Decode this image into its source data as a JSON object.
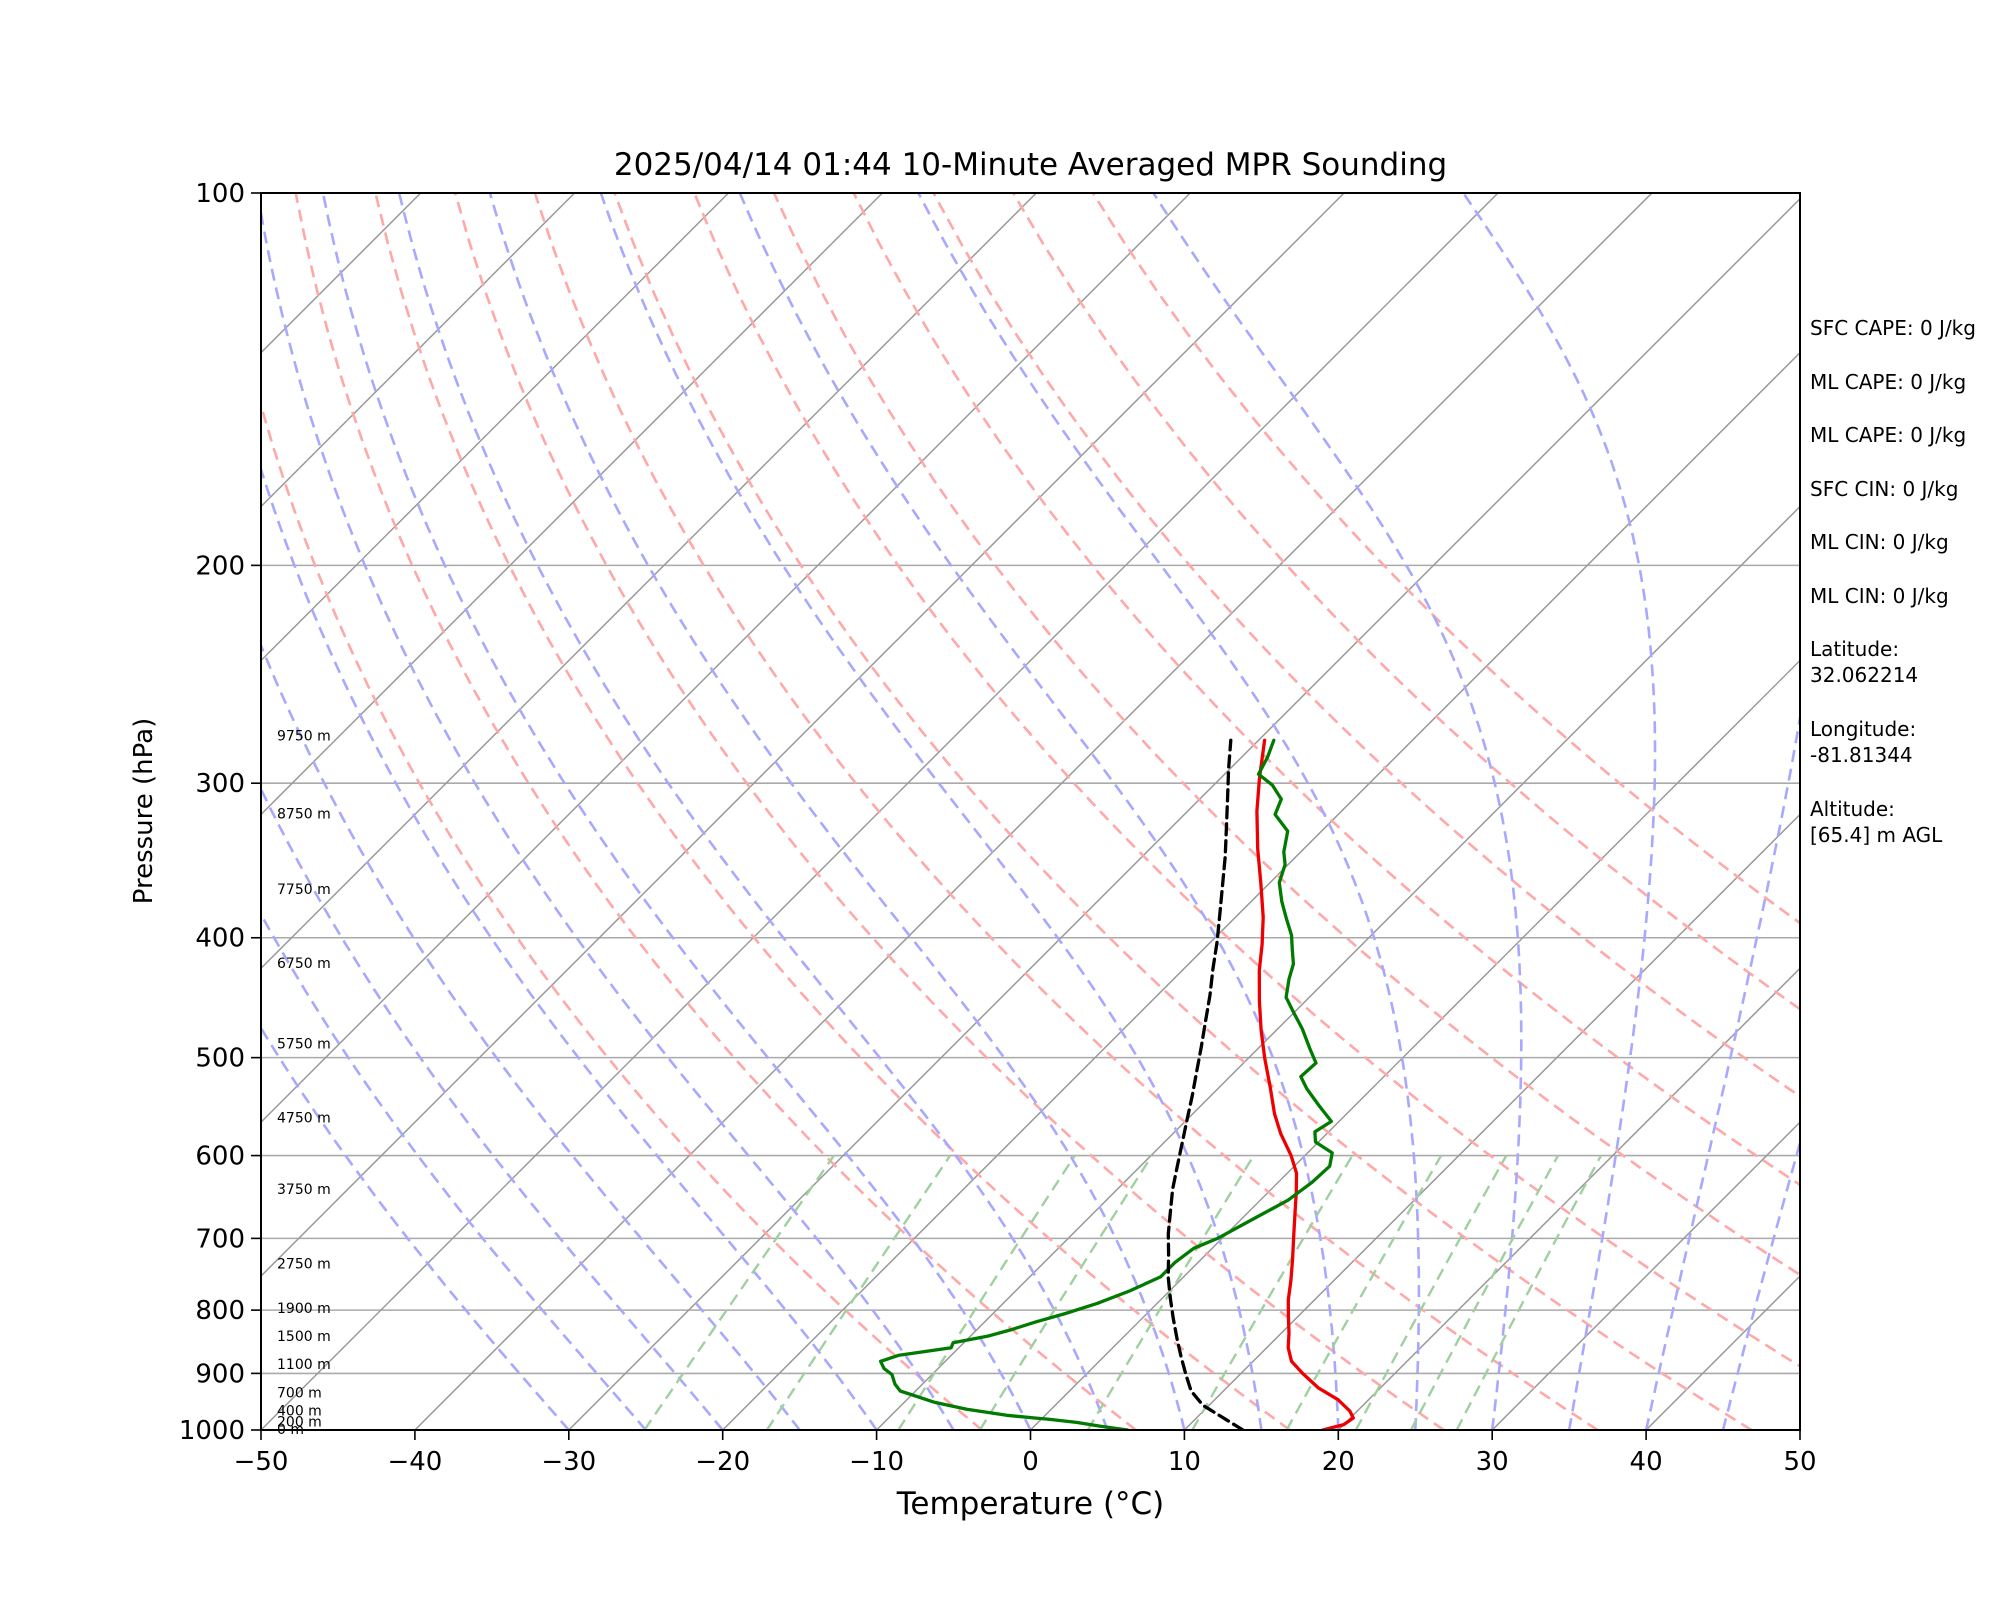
{
  "colors": {
    "temperature": "#ee0000",
    "dewpoint": "#007a00",
    "parcel": "#000000",
    "isobar": "#aaaaaa",
    "isotherm": "#999999",
    "dry_adiabat": "#ffa8a8",
    "moist_adiabat": "#a8a8ff",
    "mixing_ratio": "#a0d0a0"
  },
  "chart_data": {
    "type": "line",
    "title": "2025/04/14 01:44 10-Minute Averaged MPR Sounding",
    "xlabel": "Temperature (°C)",
    "ylabel": "Pressure (hPa)",
    "xlim": [
      -50,
      50
    ],
    "ylim": [
      1000,
      100
    ],
    "y_scale": "log",
    "x_ticks": [
      "−50",
      "−40",
      "−30",
      "−20",
      "−10",
      "0",
      "10",
      "20",
      "30",
      "40",
      "50"
    ],
    "y_ticks": [
      "100",
      "200",
      "300",
      "400",
      "500",
      "600",
      "700",
      "800",
      "900",
      "1000"
    ],
    "grid": true,
    "height_labels": [
      {
        "label": "9750 m",
        "p": 275
      },
      {
        "label": "8750 m",
        "p": 318
      },
      {
        "label": "7750 m",
        "p": 366
      },
      {
        "label": "6750 m",
        "p": 420
      },
      {
        "label": "5750 m",
        "p": 488
      },
      {
        "label": "4750 m",
        "p": 560
      },
      {
        "label": "3750 m",
        "p": 640
      },
      {
        "label": "2750 m",
        "p": 735
      },
      {
        "label": "1900 m",
        "p": 798
      },
      {
        "label": "1500 m",
        "p": 841
      },
      {
        "label": "1100 m",
        "p": 886
      },
      {
        "label": "700 m",
        "p": 934
      },
      {
        "label": "400 m",
        "p": 966
      },
      {
        "label": "200 m",
        "p": 986
      },
      {
        "label": "0 m",
        "p": 1000
      }
    ],
    "series": [
      {
        "key": "temperature",
        "points": [
          [
            19,
            1000
          ],
          [
            20,
            990
          ],
          [
            20.2,
            978
          ],
          [
            19.5,
            965
          ],
          [
            18,
            945
          ],
          [
            16,
            925
          ],
          [
            14,
            900
          ],
          [
            12.5,
            880
          ],
          [
            11.4,
            858
          ],
          [
            10.5,
            835
          ],
          [
            9.4,
            810
          ],
          [
            8.3,
            785
          ],
          [
            7.2,
            757
          ],
          [
            5.9,
            727
          ],
          [
            4.5,
            697
          ],
          [
            3.1,
            668
          ],
          [
            1.8,
            642
          ],
          [
            0.6,
            620
          ],
          [
            -0.9,
            600
          ],
          [
            -3,
            576
          ],
          [
            -4.7,
            555
          ],
          [
            -6.8,
            527
          ],
          [
            -8.9,
            501
          ],
          [
            -11,
            475
          ],
          [
            -13,
            450
          ],
          [
            -15,
            425
          ],
          [
            -16.5,
            405
          ],
          [
            -18.2,
            385
          ],
          [
            -20.5,
            362
          ],
          [
            -23,
            339
          ],
          [
            -25.5,
            316
          ],
          [
            -27.5,
            297
          ],
          [
            -29.6,
            277
          ]
        ]
      },
      {
        "key": "dewpoint",
        "points": [
          [
            6.3,
            1000
          ],
          [
            4.3,
            993
          ],
          [
            2.5,
            986
          ],
          [
            0.4,
            980
          ],
          [
            -0.5,
            978
          ],
          [
            -2.5,
            973
          ],
          [
            -5.5,
            962
          ],
          [
            -8,
            950
          ],
          [
            -11,
            930
          ],
          [
            -11.8,
            918
          ],
          [
            -12.6,
            902
          ],
          [
            -13.5,
            892
          ],
          [
            -14.2,
            880
          ],
          [
            -13.4,
            870
          ],
          [
            -10.5,
            858
          ],
          [
            -10.7,
            850
          ],
          [
            -8.9,
            840
          ],
          [
            -7.8,
            830
          ],
          [
            -6.7,
            818
          ],
          [
            -5.3,
            805
          ],
          [
            -3.9,
            790
          ],
          [
            -2.6,
            772
          ],
          [
            -1.5,
            752
          ],
          [
            -1.5,
            732
          ],
          [
            -1.2,
            713
          ],
          [
            -0.3,
            700
          ],
          [
            0.6,
            679
          ],
          [
            1.8,
            652
          ],
          [
            2.2,
            631
          ],
          [
            2.3,
            612
          ],
          [
            1.6,
            597
          ],
          [
            -0.2,
            585
          ],
          [
            -0.9,
            574
          ],
          [
            -0.5,
            563
          ],
          [
            -2.3,
            547
          ],
          [
            -4.2,
            530
          ],
          [
            -5.4,
            518
          ],
          [
            -5.3,
            505
          ],
          [
            -6.6,
            492
          ],
          [
            -8.4,
            474
          ],
          [
            -10,
            460
          ],
          [
            -11.5,
            447
          ],
          [
            -12.5,
            432
          ],
          [
            -13.2,
            420
          ],
          [
            -14.2,
            409
          ],
          [
            -15.2,
            398
          ],
          [
            -16.6,
            386
          ],
          [
            -18,
            374
          ],
          [
            -19.4,
            361
          ],
          [
            -20.2,
            349
          ],
          [
            -21.1,
            341
          ],
          [
            -22.2,
            328
          ],
          [
            -24.1,
            318
          ],
          [
            -24.7,
            309
          ],
          [
            -26.2,
            301
          ],
          [
            -27.8,
            295
          ],
          [
            -28.3,
            286
          ],
          [
            -29,
            277
          ]
        ]
      },
      {
        "key": "parcel",
        "points": [
          [
            13.8,
            1000
          ],
          [
            9.6,
            955
          ],
          [
            7.9,
            930
          ],
          [
            6.5,
            902
          ],
          [
            5.0,
            872
          ],
          [
            3.5,
            842
          ],
          [
            2.0,
            812
          ],
          [
            0.5,
            782
          ],
          [
            -1.0,
            752
          ],
          [
            -2.4,
            722
          ],
          [
            -3.8,
            694
          ],
          [
            -5.1,
            666
          ],
          [
            -6.4,
            639
          ],
          [
            -7.6,
            612
          ],
          [
            -8.8,
            586
          ],
          [
            -10.0,
            561
          ],
          [
            -11.2,
            537
          ],
          [
            -12.5,
            513
          ],
          [
            -13.8,
            490
          ],
          [
            -15.2,
            467
          ],
          [
            -16.6,
            445
          ],
          [
            -18.1,
            424
          ],
          [
            -19.6,
            403
          ],
          [
            -21.2,
            383
          ],
          [
            -22.9,
            363
          ],
          [
            -24.6,
            344
          ],
          [
            -26.4,
            326
          ],
          [
            -28.3,
            308
          ],
          [
            -30.1,
            292
          ],
          [
            -31.8,
            277
          ]
        ]
      }
    ],
    "isotherm_range": [
      -120,
      50
    ],
    "isotherm_step": 10,
    "dry_adiabat_thetas": [
      270,
      280,
      290,
      300,
      310,
      320,
      330,
      340,
      350,
      360,
      370,
      380
    ],
    "moist_adiabat_bases": [
      -30,
      -25,
      -20,
      -15,
      -10,
      -5,
      0,
      5,
      10,
      15,
      20,
      25,
      30,
      35,
      40,
      45,
      50
    ],
    "mixing_ratio_lines": [
      0.5,
      1,
      2,
      3,
      5,
      8,
      12,
      16,
      20,
      24
    ]
  },
  "sidebar": {
    "params": [
      "SFC CAPE: 0 J/kg",
      "ML CAPE: 0 J/kg",
      "ML CAPE: 0 J/kg",
      "SFC CIN: 0 J/kg",
      "ML CIN: 0 J/kg",
      "ML CIN: 0 J/kg"
    ],
    "latitude_label": "Latitude:",
    "latitude_value": "32.062214",
    "longitude_label": "Longitude:",
    "longitude_value": "-81.81344",
    "altitude_label": "Altitude:",
    "altitude_value": "[65.4] m AGL"
  }
}
